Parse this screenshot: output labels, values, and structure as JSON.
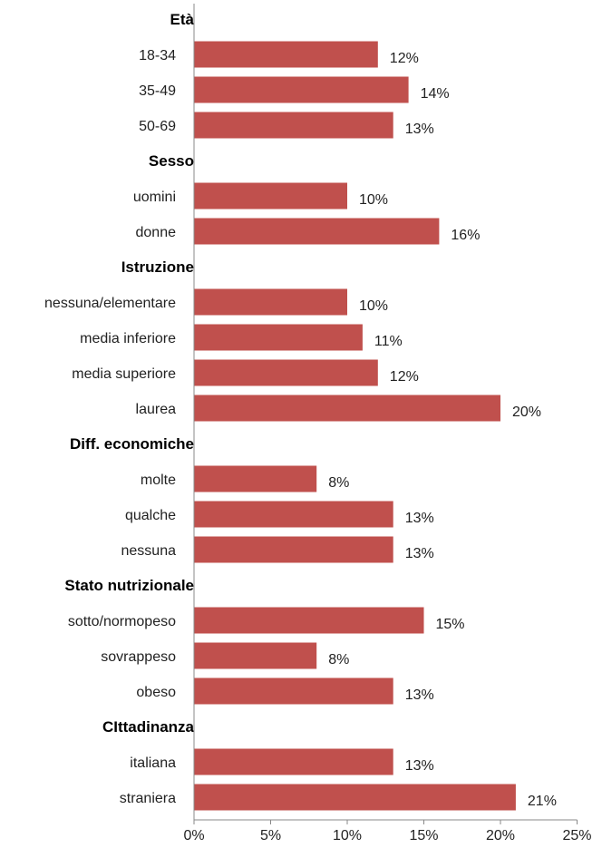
{
  "chart_data": {
    "type": "bar",
    "orientation": "horizontal",
    "bar_color": "#c0504d",
    "xlim": [
      0,
      25
    ],
    "xticks": [
      "0%",
      "5%",
      "10%",
      "15%",
      "20%",
      "25%"
    ],
    "xtick_values": [
      0,
      5,
      10,
      15,
      20,
      25
    ],
    "grid": false,
    "groups": [
      {
        "title": "Età",
        "categories": [
          "18-34",
          "35-49",
          "50-69"
        ],
        "values": [
          12,
          14,
          13
        ],
        "labels": [
          "12%",
          "14%",
          "13%"
        ]
      },
      {
        "title": "Sesso",
        "categories": [
          "uomini",
          "donne"
        ],
        "values": [
          10,
          16
        ],
        "labels": [
          "10%",
          "16%"
        ]
      },
      {
        "title": "Istruzione",
        "categories": [
          "nessuna/elementare",
          "media inferiore",
          "media superiore",
          "laurea"
        ],
        "values": [
          10,
          11,
          12,
          20
        ],
        "labels": [
          "10%",
          "11%",
          "12%",
          "20%"
        ]
      },
      {
        "title": "Diff. economiche",
        "categories": [
          "molte",
          "qualche",
          "nessuna"
        ],
        "values": [
          8,
          13,
          13
        ],
        "labels": [
          "8%",
          "13%",
          "13%"
        ]
      },
      {
        "title": "Stato nutrizionale",
        "categories": [
          "sotto/normopeso",
          "sovrappeso",
          "obeso"
        ],
        "values": [
          15,
          8,
          13
        ],
        "labels": [
          "15%",
          "8%",
          "13%"
        ]
      },
      {
        "title": "CIttadinanza",
        "categories": [
          "italiana",
          "straniera"
        ],
        "values": [
          13,
          21
        ],
        "labels": [
          "13%",
          "21%"
        ]
      }
    ]
  }
}
